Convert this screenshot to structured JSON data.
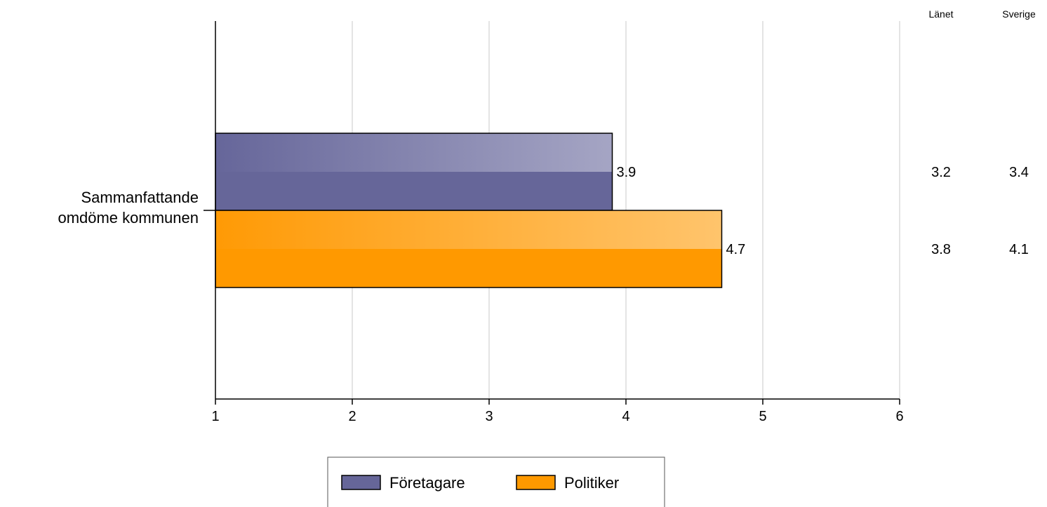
{
  "chart_data": {
    "type": "bar",
    "orientation": "horizontal",
    "categories": [
      "Sammanfattande omdöme kommunen"
    ],
    "category_lines": [
      "Sammanfattande",
      "omdöme kommunen"
    ],
    "series": [
      {
        "name": "Företagare",
        "values": [
          3.9
        ],
        "color": "#666699"
      },
      {
        "name": "Politiker",
        "values": [
          4.7
        ],
        "color": "#FF9900"
      }
    ],
    "xlim": [
      1,
      6
    ],
    "xticks": [
      "1",
      "2",
      "3",
      "4",
      "5",
      "6"
    ],
    "grid": true,
    "legend_position": "bottom-center",
    "comparison_columns": [
      {
        "header": "Länet",
        "values": [
          "3.2",
          "3.8"
        ]
      },
      {
        "header": "Sverige",
        "values": [
          "3.4",
          "4.1"
        ]
      }
    ],
    "data_labels": [
      "3.9",
      "4.7"
    ],
    "title": "",
    "xlabel": "",
    "ylabel": ""
  }
}
